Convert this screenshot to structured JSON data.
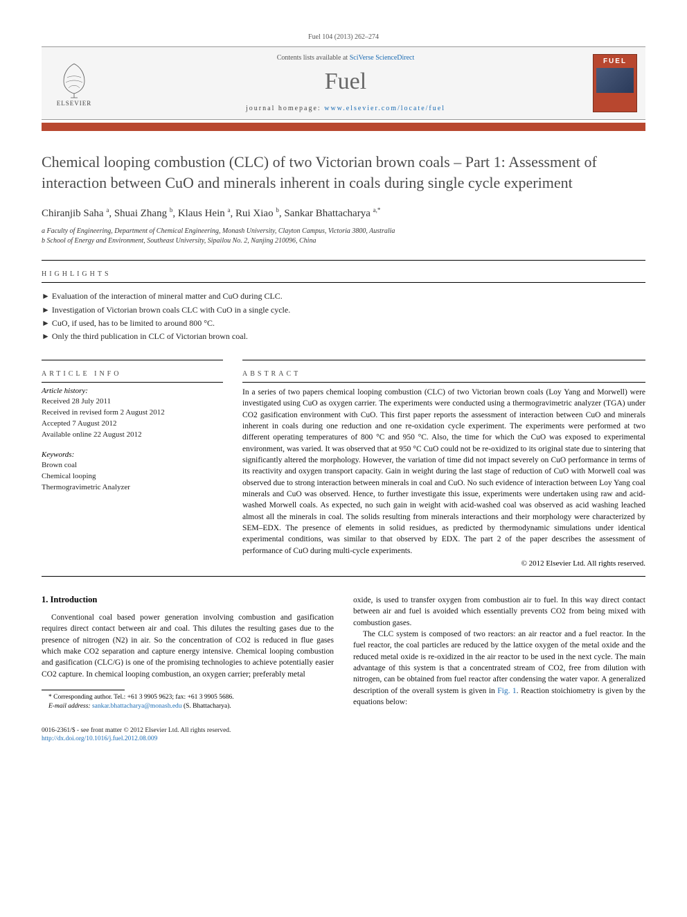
{
  "journal_ref": "Fuel 104 (2013) 262–274",
  "header": {
    "contents_prefix": "Contents lists available at ",
    "contents_link": "SciVerse ScienceDirect",
    "journal_title": "Fuel",
    "homepage_prefix": "journal homepage: ",
    "homepage_link": "www.elsevier.com/locate/fuel",
    "publisher": "ELSEVIER",
    "cover_label": "FUEL"
  },
  "title": "Chemical looping combustion (CLC) of two Victorian brown coals – Part 1: Assessment of interaction between CuO and minerals inherent in coals during single cycle experiment",
  "authors_html": "Chiranjib Saha <sup>a</sup>, Shuai Zhang <sup>b</sup>, Klaus Hein <sup>a</sup>, Rui Xiao <sup>b</sup>, Sankar Bhattacharya <sup>a,*</sup>",
  "affiliations": [
    "a Faculty of Engineering, Department of Chemical Engineering, Monash University, Clayton Campus, Victoria 3800, Australia",
    "b School of Energy and Environment, Southeast University, Sipailou No. 2, Nanjing 210096, China"
  ],
  "highlights_label": "highlights",
  "highlights": [
    "Evaluation of the interaction of mineral matter and CuO during CLC.",
    "Investigation of Victorian brown coals CLC with CuO in a single cycle.",
    "CuO, if used, has to be limited to around 800 °C.",
    "Only the third publication in CLC of Victorian brown coal."
  ],
  "article_info_label": "article info",
  "abstract_label": "abstract",
  "history": {
    "header": "Article history:",
    "received": "Received 28 July 2011",
    "revised": "Received in revised form 2 August 2012",
    "accepted": "Accepted 7 August 2012",
    "online": "Available online 22 August 2012"
  },
  "keywords": {
    "header": "Keywords:",
    "items": [
      "Brown coal",
      "Chemical looping",
      "Thermogravimetric Analyzer"
    ]
  },
  "abstract": "In a series of two papers chemical looping combustion (CLC) of two Victorian brown coals (Loy Yang and Morwell) were investigated using CuO as oxygen carrier. The experiments were conducted using a thermogravimetric analyzer (TGA) under CO2 gasification environment with CuO. This first paper reports the assessment of interaction between CuO and minerals inherent in coals during one reduction and one re-oxidation cycle experiment. The experiments were performed at two different operating temperatures of 800 °C and 950 °C. Also, the time for which the CuO was exposed to experimental environment, was varied. It was observed that at 950 °C CuO could not be re-oxidized to its original state due to sintering that significantly altered the morphology. However, the variation of time did not impact severely on CuO performance in terms of its reactivity and oxygen transport capacity. Gain in weight during the last stage of reduction of CuO with Morwell coal was observed due to strong interaction between minerals in coal and CuO. No such evidence of interaction between Loy Yang coal minerals and CuO was observed. Hence, to further investigate this issue, experiments were undertaken using raw and acid-washed Morwell coals. As expected, no such gain in weight with acid-washed coal was observed as acid washing leached almost all the minerals in coal. The solids resulting from minerals interactions and their morphology were characterized by SEM–EDX. The presence of elements in solid residues, as predicted by thermodynamic simulations under identical experimental conditions, was similar to that observed by EDX. The part 2 of the paper describes the assessment of performance of CuO during multi-cycle experiments.",
  "copyright": "© 2012 Elsevier Ltd. All rights reserved.",
  "intro": {
    "heading": "1. Introduction",
    "para1": "Conventional coal based power generation involving combustion and gasification requires direct contact between air and coal. This dilutes the resulting gases due to the presence of nitrogen (N2) in air. So the concentration of CO2 is reduced in flue gases which make CO2 separation and capture energy intensive. Chemical looping combustion and gasification (CLC/G) is one of the promising technologies to achieve potentially easier CO2 capture. In chemical looping combustion, an oxygen carrier; preferably metal",
    "para2": "oxide, is used to transfer oxygen from combustion air to fuel. In this way direct contact between air and fuel is avoided which essentially prevents CO2 from being mixed with combustion gases.",
    "para3_pre": "The CLC system is composed of two reactors: an air reactor and a fuel reactor. In the fuel reactor, the coal particles are reduced by the lattice oxygen of the metal oxide and the reduced metal oxide is re-oxidized in the air reactor to be used in the next cycle. The main advantage of this system is that a concentrated stream of CO2, free from dilution with nitrogen, can be obtained from fuel reactor after condensing the water vapor. A generalized description of the overall system is given in ",
    "fig_link": "Fig. 1",
    "para3_post": ". Reaction stoichiometry is given by the equations below:"
  },
  "corresponding": {
    "label": "* Corresponding author. Tel.: +61 3 9905 9623; fax: +61 3 9905 5686.",
    "email_label": "E-mail address: ",
    "email": "sankar.bhattacharya@monash.edu",
    "email_suffix": " (S. Bhattacharya)."
  },
  "footer": {
    "line1": "0016-2361/$ - see front matter © 2012 Elsevier Ltd. All rights reserved.",
    "doi": "http://dx.doi.org/10.1016/j.fuel.2012.08.009"
  },
  "colors": {
    "accent": "#b8472f",
    "link": "#1a6bb3",
    "title_gray": "#4a4a4a",
    "header_bg": "#f5f5f5"
  }
}
